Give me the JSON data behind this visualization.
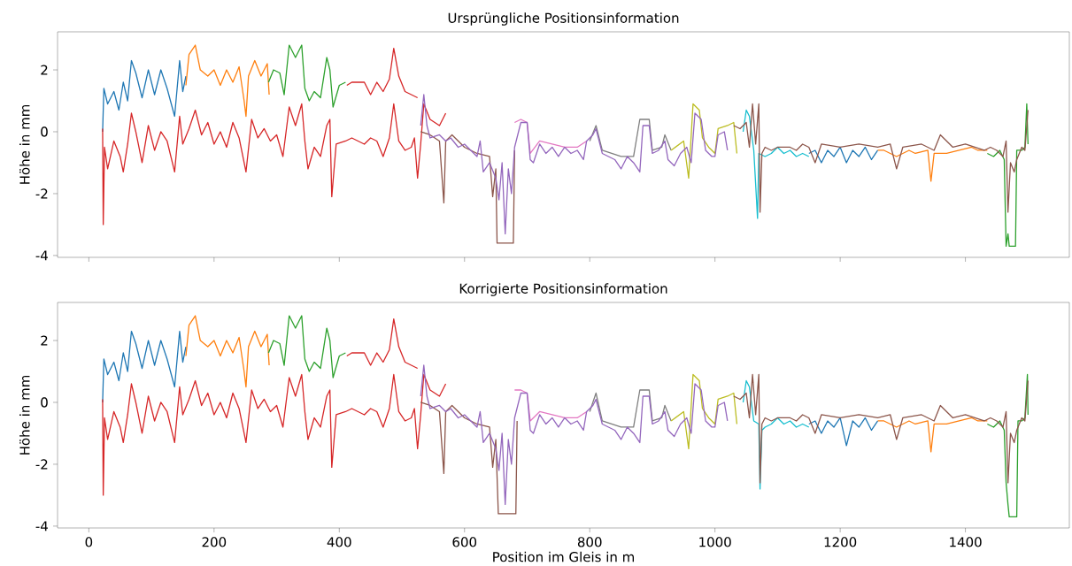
{
  "chart_data": [
    {
      "type": "line",
      "title": "Ursprüngliche Positionsinformation",
      "ylabel": "Höhe in mm",
      "xlim": [
        -50,
        1566
      ],
      "ylim": [
        -4.06,
        3.23
      ],
      "xticks": [
        0,
        200,
        400,
        600,
        800,
        1000,
        1200,
        1400
      ],
      "yticks": [
        -4,
        -2,
        0,
        2
      ],
      "tick_labels": "y",
      "series": [
        {
          "color": "#1f77b4",
          "x": [
            22,
            24,
            30,
            40,
            48,
            55,
            62,
            68,
            75,
            85,
            95,
            105,
            115,
            125,
            137,
            145,
            150,
            155
          ],
          "values": [
            0.0,
            1.4,
            0.9,
            1.3,
            0.7,
            1.6,
            1.0,
            2.3,
            1.9,
            1.1,
            2.0,
            1.2,
            2.0,
            1.4,
            0.5,
            2.3,
            1.3,
            1.8
          ]
        },
        {
          "color": "#ff7f0e",
          "x": [
            155,
            160,
            170,
            178,
            190,
            200,
            210,
            220,
            230,
            240,
            248,
            251,
            255,
            265,
            275,
            285,
            288
          ],
          "values": [
            1.5,
            2.5,
            2.8,
            2.0,
            1.8,
            2.0,
            1.5,
            2.0,
            1.6,
            2.1,
            1.0,
            0.5,
            1.8,
            2.3,
            1.8,
            2.2,
            1.2
          ]
        },
        {
          "color": "#2ca02c",
          "x": [
            287,
            295,
            305,
            312,
            320,
            330,
            340,
            345,
            352,
            360,
            370,
            380,
            385,
            390,
            400,
            410
          ],
          "values": [
            1.6,
            2.0,
            1.9,
            1.2,
            2.8,
            2.4,
            2.8,
            1.4,
            1.0,
            1.3,
            1.1,
            2.4,
            2.0,
            0.8,
            1.5,
            1.6
          ]
        },
        {
          "color": "#d62728",
          "x": [
            412,
            420,
            440,
            450,
            460,
            470,
            480,
            487,
            495,
            505,
            515,
            525
          ],
          "values": [
            1.5,
            1.6,
            1.6,
            1.2,
            1.6,
            1.3,
            1.7,
            2.7,
            1.8,
            1.3,
            1.2,
            1.1
          ]
        },
        {
          "color": "#d62728",
          "x": [
            22,
            23,
            25,
            30,
            40,
            50,
            55,
            62,
            68,
            75,
            85,
            95,
            105,
            115,
            125,
            137,
            145,
            150,
            160,
            170,
            180,
            190,
            200,
            210,
            220,
            230,
            240,
            251,
            260,
            270,
            280,
            290,
            300,
            310,
            320,
            330,
            340,
            345,
            350,
            360,
            370,
            380,
            385,
            388,
            395,
            410,
            420,
            440,
            450,
            460,
            470,
            480,
            487,
            495,
            505,
            515,
            520,
            525,
            530,
            535,
            545,
            560,
            570
          ],
          "values": [
            0.1,
            -3.0,
            -0.5,
            -1.2,
            -0.3,
            -0.8,
            -1.3,
            -0.4,
            0.6,
            0.0,
            -1.0,
            0.2,
            -0.6,
            0.0,
            -0.3,
            -1.3,
            0.5,
            -0.4,
            0.1,
            0.7,
            -0.1,
            0.3,
            -0.4,
            0.0,
            -0.5,
            0.3,
            -0.2,
            -1.3,
            0.4,
            -0.2,
            0.1,
            -0.3,
            -0.1,
            -0.8,
            0.8,
            0.2,
            0.9,
            -0.3,
            -1.2,
            -0.5,
            -0.8,
            0.2,
            0.4,
            -2.1,
            -0.4,
            -0.3,
            -0.2,
            -0.4,
            -0.2,
            -0.3,
            -0.8,
            -0.2,
            0.9,
            -0.3,
            -0.6,
            -0.5,
            -0.2,
            -1.5,
            -0.4,
            0.9,
            0.4,
            0.2,
            0.6
          ]
        },
        {
          "color": "#8c564b",
          "x": [
            530,
            545,
            560,
            567,
            570,
            580,
            600,
            620,
            640,
            645,
            650,
            652,
            678,
            680
          ],
          "values": [
            0.0,
            -0.1,
            -0.3,
            -2.3,
            -0.3,
            -0.1,
            -0.5,
            -0.7,
            -0.8,
            -2.1,
            -1.2,
            -3.6,
            -3.6,
            -0.6
          ]
        },
        {
          "color": "#e377c2",
          "x": [
            680,
            690,
            700,
            705,
            720,
            740,
            760,
            780,
            795
          ],
          "values": [
            0.3,
            0.4,
            0.3,
            -0.7,
            -0.3,
            -0.4,
            -0.5,
            -0.5,
            -0.3
          ]
        },
        {
          "color": "#7f7f7f",
          "x": [
            800,
            810,
            820,
            850,
            870,
            880,
            895,
            900,
            915,
            920,
            930
          ],
          "values": [
            -0.3,
            0.2,
            -0.6,
            -0.8,
            -0.8,
            0.4,
            0.4,
            -0.6,
            -0.5,
            -0.1,
            -0.6
          ]
        },
        {
          "color": "#bcbd22",
          "x": [
            930,
            950,
            958,
            965,
            975,
            980,
            990,
            1000,
            1005,
            1020,
            1030,
            1035
          ],
          "values": [
            -0.6,
            -0.3,
            -1.5,
            0.9,
            0.7,
            -0.2,
            -0.5,
            -0.7,
            0.1,
            0.2,
            0.3,
            -0.7
          ]
        },
        {
          "color": "#9467bd",
          "x": [
            530,
            535,
            540,
            545,
            560,
            570,
            578,
            590,
            600,
            610,
            620,
            625,
            630,
            640,
            650,
            655,
            660,
            665,
            670,
            675,
            680,
            690,
            700,
            705,
            710,
            720,
            730,
            740,
            750,
            760,
            770,
            780,
            790,
            795,
            805,
            810,
            820,
            840,
            850,
            860,
            870,
            880,
            885,
            895,
            900,
            910,
            920,
            925,
            935,
            945,
            955,
            962,
            968,
            978,
            985,
            995,
            1000,
            1005,
            1015,
            1020
          ],
          "values": [
            0.2,
            1.2,
            0.2,
            -0.2,
            -0.1,
            -0.3,
            -0.2,
            -0.5,
            -0.4,
            -0.6,
            -0.8,
            -0.3,
            -1.3,
            -1.0,
            -1.5,
            -2.2,
            -1.0,
            -3.3,
            -1.2,
            -2.0,
            -0.5,
            0.3,
            0.3,
            -0.9,
            -1.0,
            -0.4,
            -0.7,
            -0.5,
            -0.8,
            -0.5,
            -0.7,
            -0.6,
            -0.9,
            -0.3,
            -0.1,
            0.1,
            -0.7,
            -0.9,
            -1.2,
            -0.8,
            -1.0,
            -1.3,
            0.2,
            0.2,
            -0.7,
            -0.6,
            -0.3,
            -0.9,
            -1.1,
            -0.7,
            -0.5,
            -1.0,
            0.6,
            0.4,
            -0.6,
            -0.8,
            -0.8,
            -0.1,
            0.0,
            -0.6
          ]
        },
        {
          "color": "#17becf",
          "x": [
            1045,
            1050,
            1055,
            1062,
            1068,
            1070,
            1080,
            1090,
            1100,
            1110,
            1120,
            1130,
            1140,
            1150
          ],
          "values": [
            0.0,
            0.7,
            0.5,
            -0.6,
            -2.8,
            -0.7,
            -0.8,
            -0.7,
            -0.5,
            -0.7,
            -0.6,
            -0.8,
            -0.7,
            -0.8
          ]
        },
        {
          "color": "#1f77b4",
          "x": [
            1150,
            1160,
            1170,
            1180,
            1190,
            1200,
            1210,
            1220,
            1230,
            1240,
            1250,
            1260
          ],
          "values": [
            -0.7,
            -0.6,
            -1.0,
            -0.6,
            -0.8,
            -0.5,
            -1.0,
            -0.6,
            -0.8,
            -0.5,
            -0.9,
            -0.6
          ]
        },
        {
          "color": "#ff7f0e",
          "x": [
            1260,
            1270,
            1290,
            1310,
            1320,
            1340,
            1345,
            1350,
            1370,
            1390,
            1410,
            1420,
            1435
          ],
          "values": [
            -0.6,
            -0.6,
            -0.8,
            -0.6,
            -0.7,
            -0.6,
            -1.6,
            -0.7,
            -0.7,
            -0.6,
            -0.5,
            -0.6,
            -0.6
          ]
        },
        {
          "color": "#2ca02c",
          "x": [
            1435,
            1445,
            1455,
            1462,
            1465,
            1468,
            1470,
            1480,
            1482,
            1490,
            1495,
            1498,
            1500
          ],
          "values": [
            -0.7,
            -0.8,
            -0.6,
            -0.9,
            -3.7,
            -3.3,
            -3.7,
            -3.7,
            -0.6,
            -0.6,
            -0.5,
            0.9,
            -0.4
          ]
        },
        {
          "color": "#8c564b",
          "x": [
            1030,
            1040,
            1050,
            1055,
            1060,
            1065,
            1070,
            1072,
            1075,
            1080,
            1090,
            1100,
            1120,
            1130,
            1140,
            1150,
            1160,
            1170,
            1200,
            1230,
            1260,
            1280,
            1290,
            1300,
            1330,
            1350,
            1360,
            1380,
            1400,
            1430,
            1440,
            1450,
            1460,
            1465,
            1468,
            1472,
            1478,
            1482,
            1490,
            1495,
            1500
          ],
          "values": [
            0.2,
            0.1,
            0.3,
            -0.5,
            0.9,
            -0.4,
            0.9,
            -2.6,
            -0.7,
            -0.5,
            -0.6,
            -0.5,
            -0.5,
            -0.6,
            -0.4,
            -0.5,
            -1.0,
            -0.4,
            -0.5,
            -0.4,
            -0.5,
            -0.4,
            -1.2,
            -0.5,
            -0.4,
            -0.6,
            -0.1,
            -0.5,
            -0.4,
            -0.6,
            -0.5,
            -0.6,
            -0.8,
            -0.3,
            -2.6,
            -1.0,
            -1.3,
            -0.9,
            -0.5,
            -0.6,
            0.7
          ]
        }
      ]
    },
    {
      "type": "line",
      "title": "Korrigierte Positionsinformation",
      "xlabel": "Position im Gleis in m",
      "ylabel": "Höhe in mm",
      "xlim": [
        -50,
        1566
      ],
      "ylim": [
        -4.06,
        3.23
      ],
      "xticks": [
        0,
        200,
        400,
        600,
        800,
        1000,
        1200,
        1400
      ],
      "yticks": [
        -4,
        -2,
        0,
        2
      ],
      "series": [
        {
          "color": "#1f77b4",
          "x": [
            22,
            24,
            30,
            40,
            48,
            55,
            62,
            68,
            75,
            85,
            95,
            105,
            115,
            125,
            137,
            145,
            150,
            155
          ],
          "values": [
            0.0,
            1.4,
            0.9,
            1.3,
            0.7,
            1.6,
            1.0,
            2.3,
            1.9,
            1.1,
            2.0,
            1.2,
            2.0,
            1.4,
            0.5,
            2.3,
            1.3,
            1.8
          ]
        },
        {
          "color": "#ff7f0e",
          "x": [
            155,
            160,
            170,
            178,
            190,
            200,
            210,
            220,
            230,
            240,
            248,
            251,
            255,
            265,
            275,
            285,
            288
          ],
          "values": [
            1.5,
            2.5,
            2.8,
            2.0,
            1.8,
            2.0,
            1.5,
            2.0,
            1.6,
            2.1,
            1.0,
            0.5,
            1.8,
            2.3,
            1.8,
            2.2,
            1.2
          ]
        },
        {
          "color": "#2ca02c",
          "x": [
            287,
            295,
            305,
            312,
            320,
            330,
            340,
            345,
            352,
            360,
            370,
            380,
            385,
            390,
            400,
            410
          ],
          "values": [
            1.6,
            2.0,
            1.9,
            1.2,
            2.8,
            2.4,
            2.8,
            1.4,
            1.0,
            1.3,
            1.1,
            2.4,
            2.0,
            0.8,
            1.5,
            1.6
          ]
        },
        {
          "color": "#d62728",
          "x": [
            412,
            420,
            440,
            450,
            460,
            470,
            480,
            487,
            495,
            505,
            515,
            525
          ],
          "values": [
            1.5,
            1.6,
            1.6,
            1.2,
            1.6,
            1.3,
            1.7,
            2.7,
            1.8,
            1.3,
            1.2,
            1.1
          ]
        },
        {
          "color": "#d62728",
          "x": [
            22,
            23,
            25,
            30,
            40,
            50,
            55,
            62,
            68,
            75,
            85,
            95,
            105,
            115,
            125,
            137,
            145,
            150,
            160,
            170,
            180,
            190,
            200,
            210,
            220,
            230,
            240,
            251,
            260,
            270,
            280,
            290,
            300,
            310,
            320,
            330,
            340,
            345,
            350,
            360,
            370,
            380,
            385,
            388,
            395,
            410,
            420,
            440,
            450,
            460,
            470,
            480,
            487,
            495,
            505,
            515,
            520,
            525,
            530,
            535,
            545,
            560,
            570
          ],
          "values": [
            0.1,
            -3.0,
            -0.5,
            -1.2,
            -0.3,
            -0.8,
            -1.3,
            -0.4,
            0.6,
            0.0,
            -1.0,
            0.2,
            -0.6,
            0.0,
            -0.3,
            -1.3,
            0.5,
            -0.4,
            0.1,
            0.7,
            -0.1,
            0.3,
            -0.4,
            0.0,
            -0.5,
            0.3,
            -0.2,
            -1.3,
            0.4,
            -0.2,
            0.1,
            -0.3,
            -0.1,
            -0.8,
            0.8,
            0.2,
            0.9,
            -0.3,
            -1.2,
            -0.5,
            -0.8,
            0.2,
            0.4,
            -2.1,
            -0.4,
            -0.3,
            -0.2,
            -0.4,
            -0.2,
            -0.3,
            -0.8,
            -0.2,
            0.9,
            -0.3,
            -0.6,
            -0.5,
            -0.2,
            -1.5,
            -0.4,
            0.9,
            0.4,
            0.2,
            0.6
          ]
        },
        {
          "color": "#8c564b",
          "x": [
            530,
            545,
            560,
            567,
            570,
            580,
            600,
            620,
            640,
            645,
            650,
            654,
            682,
            684
          ],
          "values": [
            0.0,
            -0.1,
            -0.3,
            -2.3,
            -0.3,
            -0.1,
            -0.5,
            -0.7,
            -0.8,
            -2.1,
            -1.2,
            -3.6,
            -3.6,
            -0.6
          ]
        },
        {
          "color": "#e377c2",
          "x": [
            680,
            690,
            700,
            705,
            720,
            740,
            760,
            780,
            795
          ],
          "values": [
            0.4,
            0.4,
            0.3,
            -0.6,
            -0.3,
            -0.4,
            -0.5,
            -0.5,
            -0.3
          ]
        },
        {
          "color": "#7f7f7f",
          "x": [
            800,
            810,
            820,
            850,
            870,
            880,
            895,
            900,
            915,
            920,
            930
          ],
          "values": [
            -0.3,
            0.3,
            -0.6,
            -0.8,
            -0.8,
            0.4,
            0.4,
            -0.6,
            -0.5,
            -0.1,
            -0.6
          ]
        },
        {
          "color": "#bcbd22",
          "x": [
            930,
            950,
            958,
            965,
            975,
            980,
            990,
            1000,
            1005,
            1020,
            1030,
            1035
          ],
          "values": [
            -0.6,
            -0.3,
            -1.5,
            0.9,
            0.7,
            -0.2,
            -0.5,
            -0.7,
            0.1,
            0.2,
            0.3,
            -0.7
          ]
        },
        {
          "color": "#9467bd",
          "x": [
            530,
            535,
            540,
            545,
            560,
            570,
            578,
            590,
            600,
            610,
            620,
            625,
            630,
            640,
            650,
            655,
            660,
            665,
            670,
            675,
            680,
            690,
            700,
            705,
            710,
            720,
            730,
            740,
            750,
            760,
            770,
            780,
            790,
            795,
            805,
            810,
            820,
            840,
            850,
            860,
            870,
            880,
            885,
            895,
            900,
            910,
            920,
            925,
            935,
            945,
            955,
            962,
            968,
            978,
            985,
            995,
            1000,
            1005,
            1015,
            1020
          ],
          "values": [
            0.2,
            1.2,
            0.2,
            -0.2,
            -0.1,
            -0.3,
            -0.2,
            -0.5,
            -0.4,
            -0.6,
            -0.8,
            -0.3,
            -1.3,
            -1.0,
            -1.5,
            -2.2,
            -1.0,
            -3.3,
            -1.2,
            -2.0,
            -0.5,
            0.3,
            0.3,
            -0.9,
            -1.0,
            -0.4,
            -0.7,
            -0.5,
            -0.8,
            -0.5,
            -0.7,
            -0.6,
            -0.9,
            -0.3,
            -0.1,
            0.1,
            -0.7,
            -0.9,
            -1.2,
            -0.8,
            -1.0,
            -1.3,
            0.2,
            0.2,
            -0.7,
            -0.6,
            -0.3,
            -0.9,
            -1.1,
            -0.7,
            -0.5,
            -1.0,
            0.6,
            0.4,
            -0.6,
            -0.8,
            -0.8,
            -0.1,
            0.0,
            -0.6
          ]
        },
        {
          "color": "#17becf",
          "x": [
            1045,
            1050,
            1055,
            1062,
            1070,
            1072,
            1075,
            1080,
            1090,
            1100,
            1110,
            1120,
            1130,
            1140,
            1150
          ],
          "values": [
            0.0,
            0.7,
            0.5,
            -0.6,
            -0.7,
            -2.8,
            -0.9,
            -0.8,
            -0.7,
            -0.5,
            -0.7,
            -0.6,
            -0.8,
            -0.7,
            -0.8
          ]
        },
        {
          "color": "#1f77b4",
          "x": [
            1150,
            1160,
            1170,
            1180,
            1190,
            1200,
            1210,
            1220,
            1230,
            1240,
            1250,
            1260
          ],
          "values": [
            -0.7,
            -0.6,
            -1.0,
            -0.6,
            -0.8,
            -0.5,
            -1.4,
            -0.6,
            -0.8,
            -0.5,
            -0.9,
            -0.6
          ]
        },
        {
          "color": "#ff7f0e",
          "x": [
            1260,
            1270,
            1290,
            1310,
            1320,
            1340,
            1345,
            1350,
            1370,
            1390,
            1410,
            1420,
            1435
          ],
          "values": [
            -0.6,
            -0.6,
            -0.8,
            -0.6,
            -0.7,
            -0.6,
            -1.6,
            -0.7,
            -0.7,
            -0.6,
            -0.5,
            -0.6,
            -0.6
          ]
        },
        {
          "color": "#2ca02c",
          "x": [
            1435,
            1445,
            1455,
            1462,
            1465,
            1468,
            1470,
            1470,
            1482,
            1484,
            1490,
            1495,
            1499,
            1500
          ],
          "values": [
            -0.7,
            -0.8,
            -0.6,
            -0.9,
            -2.6,
            -3.3,
            -3.7,
            -3.7,
            -3.7,
            -0.6,
            -0.6,
            -0.5,
            0.9,
            -0.4
          ]
        },
        {
          "color": "#8c564b",
          "x": [
            1030,
            1040,
            1050,
            1055,
            1060,
            1065,
            1070,
            1072,
            1075,
            1080,
            1090,
            1100,
            1120,
            1130,
            1140,
            1150,
            1160,
            1170,
            1200,
            1230,
            1260,
            1280,
            1290,
            1300,
            1330,
            1350,
            1360,
            1380,
            1400,
            1430,
            1440,
            1450,
            1460,
            1465,
            1468,
            1472,
            1478,
            1482,
            1490,
            1495,
            1500
          ],
          "values": [
            0.2,
            0.1,
            0.3,
            -0.5,
            0.9,
            -0.4,
            0.9,
            -2.6,
            -0.7,
            -0.5,
            -0.6,
            -0.5,
            -0.5,
            -0.6,
            -0.4,
            -0.5,
            -1.0,
            -0.4,
            -0.5,
            -0.4,
            -0.5,
            -0.4,
            -1.2,
            -0.5,
            -0.4,
            -0.6,
            -0.1,
            -0.5,
            -0.4,
            -0.6,
            -0.5,
            -0.6,
            -0.8,
            -0.3,
            -2.6,
            -1.0,
            -1.3,
            -0.9,
            -0.5,
            -0.6,
            0.7
          ]
        }
      ]
    }
  ]
}
